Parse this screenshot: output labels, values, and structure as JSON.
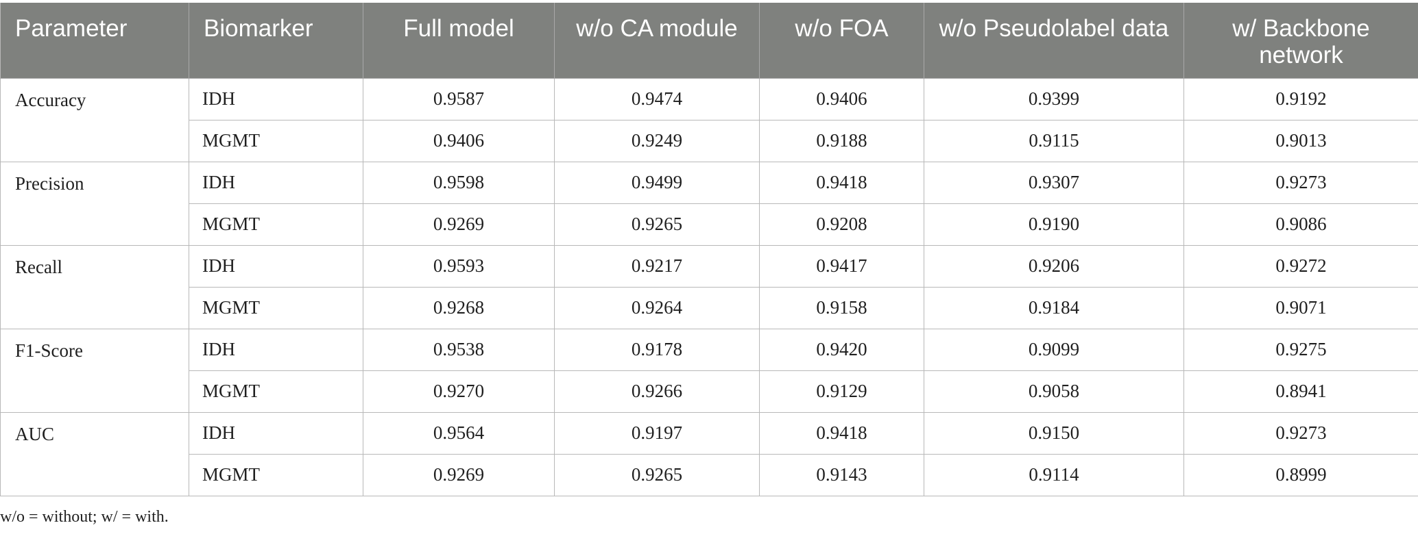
{
  "table": {
    "headers": [
      "Parameter",
      "Biomarker",
      "Full model",
      "w/o CA module",
      "w/o FOA",
      "w/o Pseudolabel data",
      "w/ Backbone network"
    ],
    "groups": [
      {
        "parameter": "Accuracy",
        "rows": [
          {
            "biomarker": "IDH",
            "values": [
              "0.9587",
              "0.9474",
              "0.9406",
              "0.9399",
              "0.9192"
            ]
          },
          {
            "biomarker": "MGMT",
            "values": [
              "0.9406",
              "0.9249",
              "0.9188",
              "0.9115",
              "0.9013"
            ]
          }
        ]
      },
      {
        "parameter": "Precision",
        "rows": [
          {
            "biomarker": "IDH",
            "values": [
              "0.9598",
              "0.9499",
              "0.9418",
              "0.9307",
              "0.9273"
            ]
          },
          {
            "biomarker": "MGMT",
            "values": [
              "0.9269",
              "0.9265",
              "0.9208",
              "0.9190",
              "0.9086"
            ]
          }
        ]
      },
      {
        "parameter": "Recall",
        "rows": [
          {
            "biomarker": "IDH",
            "values": [
              "0.9593",
              "0.9217",
              "0.9417",
              "0.9206",
              "0.9272"
            ]
          },
          {
            "biomarker": "MGMT",
            "values": [
              "0.9268",
              "0.9264",
              "0.9158",
              "0.9184",
              "0.9071"
            ]
          }
        ]
      },
      {
        "parameter": "F1-Score",
        "rows": [
          {
            "biomarker": "IDH",
            "values": [
              "0.9538",
              "0.9178",
              "0.9420",
              "0.9099",
              "0.9275"
            ]
          },
          {
            "biomarker": "MGMT",
            "values": [
              "0.9270",
              "0.9266",
              "0.9129",
              "0.9058",
              "0.8941"
            ]
          }
        ]
      },
      {
        "parameter": "AUC",
        "rows": [
          {
            "biomarker": "IDH",
            "values": [
              "0.9564",
              "0.9197",
              "0.9418",
              "0.9150",
              "0.9273"
            ]
          },
          {
            "biomarker": "MGMT",
            "values": [
              "0.9269",
              "0.9265",
              "0.9143",
              "0.9114",
              "0.8999"
            ]
          }
        ]
      }
    ]
  },
  "footnote": "w/o = without; w/ = with.",
  "colors": {
    "header_bg": "#7f817e",
    "header_text": "#ffffff",
    "grid": "#b8b8b8"
  }
}
